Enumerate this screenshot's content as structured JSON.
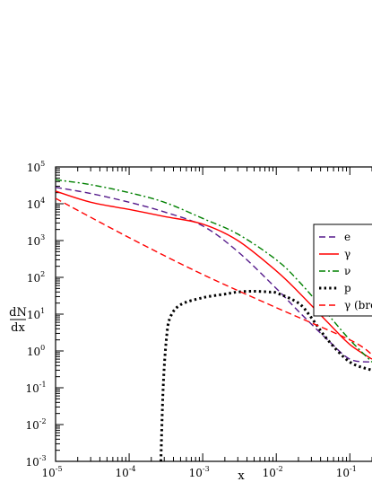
{
  "chart_data": {
    "type": "line",
    "title": "",
    "xlabel": "x",
    "ylabel_num": "dN",
    "ylabel_den": "dx",
    "xscale": "log",
    "yscale": "log",
    "xlim": [
      1e-05,
      0.2
    ],
    "ylim": [
      0.001,
      100000
    ],
    "grid": false,
    "legend_position": "right",
    "x_ticks": [
      {
        "base": "10",
        "exp": "-5",
        "value": 1e-05
      },
      {
        "base": "10",
        "exp": "-4",
        "value": 0.0001
      },
      {
        "base": "10",
        "exp": "-3",
        "value": 0.001
      },
      {
        "base": "10",
        "exp": "-2",
        "value": 0.01
      },
      {
        "base": "10",
        "exp": "-1",
        "value": 0.1
      }
    ],
    "y_ticks": [
      {
        "base": "10",
        "exp": "-3",
        "value": 0.001
      },
      {
        "base": "10",
        "exp": "-2",
        "value": 0.01
      },
      {
        "base": "10",
        "exp": "-1",
        "value": 0.1
      },
      {
        "base": "10",
        "exp": "0",
        "value": 1
      },
      {
        "base": "10",
        "exp": "1",
        "value": 10
      },
      {
        "base": "10",
        "exp": "2",
        "value": 100
      },
      {
        "base": "10",
        "exp": "3",
        "value": 1000
      },
      {
        "base": "10",
        "exp": "4",
        "value": 10000
      },
      {
        "base": "10",
        "exp": "5",
        "value": 100000
      }
    ],
    "series": [
      {
        "name": "e",
        "color": "#551a8b",
        "dash": "dash",
        "x": [
          1e-05,
          3e-05,
          0.0001,
          0.0003,
          0.001,
          0.003,
          0.01,
          0.02,
          0.05,
          0.1,
          0.2
        ],
        "y": [
          28000,
          19000,
          11000,
          6000,
          2500,
          500,
          50,
          12,
          2,
          0.6,
          0.5
        ]
      },
      {
        "name": "γ",
        "color": "#ff0000",
        "dash": "solid",
        "x": [
          1e-05,
          3e-05,
          0.0001,
          0.0003,
          0.001,
          0.003,
          0.01,
          0.02,
          0.05,
          0.1,
          0.2
        ],
        "y": [
          22000,
          11000,
          7000,
          4500,
          2800,
          1000,
          150,
          40,
          6,
          1.5,
          0.6
        ]
      },
      {
        "name": "ν",
        "color": "#008000",
        "dash": "dashdot",
        "x": [
          1e-05,
          3e-05,
          0.0001,
          0.0003,
          0.001,
          0.003,
          0.01,
          0.02,
          0.05,
          0.1,
          0.2
        ],
        "y": [
          45000,
          33000,
          20000,
          11000,
          4000,
          1500,
          300,
          80,
          10,
          2,
          0.5
        ]
      },
      {
        "name": "p",
        "color": "#000000",
        "dash": "dot",
        "x": [
          0.00027,
          0.00029,
          0.00032,
          0.00036,
          0.0005,
          0.001,
          0.002,
          0.003,
          0.005,
          0.008,
          0.01,
          0.02,
          0.03,
          0.05,
          0.1,
          0.2
        ],
        "y": [
          0.001,
          0.1,
          2,
          8,
          18,
          28,
          35,
          40,
          42,
          40,
          38,
          20,
          8,
          2,
          0.5,
          0.3
        ]
      },
      {
        "name": "γ (bre",
        "color": "#ff0000",
        "dash": "dash",
        "x": [
          1e-05,
          0.0001,
          0.001,
          0.01,
          0.1,
          0.2
        ],
        "y": [
          14000,
          1200,
          120,
          15,
          2,
          0.8
        ]
      }
    ]
  }
}
